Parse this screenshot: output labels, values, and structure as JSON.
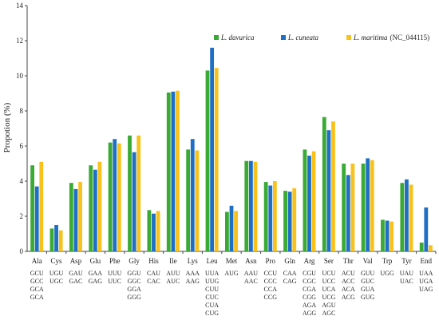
{
  "chart_data": {
    "type": "bar",
    "ylabel": "Propotion (%)",
    "xlabel": "",
    "ylim": [
      0,
      14
    ],
    "yticks": [
      0,
      2,
      4,
      6,
      8,
      10,
      12,
      14
    ],
    "grid": false,
    "legend_position": "top-right",
    "categories": [
      "Ala",
      "Cys",
      "Asp",
      "Glu",
      "Phe",
      "Gly",
      "His",
      "Ile",
      "Lys",
      "Leu",
      "Met",
      "Asn",
      "Pro",
      "Gln",
      "Arg",
      "Ser",
      "Thr",
      "Val",
      "Trp",
      "Tyr",
      "End"
    ],
    "codons": [
      [
        "GCU",
        "GCC",
        "GCA",
        "GCA"
      ],
      [
        "UGU",
        "UGC"
      ],
      [
        "GAU",
        "GAC"
      ],
      [
        "GAA",
        "GAG"
      ],
      [
        "UUU",
        "UUC"
      ],
      [
        "GGU",
        "GGC",
        "GGA",
        "GGG"
      ],
      [
        "CAU",
        "CAC"
      ],
      [
        "AUU",
        "AUC"
      ],
      [
        "AAA",
        "AAG"
      ],
      [
        "UUA",
        "UUG",
        "CUU",
        "CUC",
        "CUA",
        "CUG"
      ],
      [
        "AUG"
      ],
      [
        "AAU",
        "AAC"
      ],
      [
        "CCU",
        "CCC",
        "CCA",
        "CCG"
      ],
      [
        "CAA",
        "CAG"
      ],
      [
        "CGU",
        "CGC",
        "CGA",
        "CGG",
        "AGA",
        "AGG"
      ],
      [
        "UCU",
        "UCC",
        "UCA",
        "UCG",
        "AGU",
        "AGC"
      ],
      [
        "ACU",
        "ACC",
        "ACA",
        "ACG"
      ],
      [
        "GUU",
        "GUC",
        "GUA",
        "GUG"
      ],
      [
        "UGG"
      ],
      [
        "UAU",
        "UAC"
      ],
      [
        "UAA",
        "UGA",
        "UAG"
      ]
    ],
    "series": [
      {
        "name": "L. davurica",
        "color": "#3aaa35",
        "values": [
          4.9,
          1.3,
          3.9,
          4.9,
          6.2,
          6.6,
          2.35,
          9.05,
          5.8,
          10.3,
          2.25,
          5.15,
          3.95,
          3.45,
          5.8,
          7.65,
          5.0,
          5.0,
          1.8,
          3.9,
          0.5
        ]
      },
      {
        "name": "L. cuneata",
        "color": "#1f6fc5",
        "values": [
          3.7,
          1.5,
          3.55,
          4.65,
          6.4,
          5.65,
          2.15,
          9.1,
          6.4,
          11.6,
          2.6,
          5.15,
          3.75,
          3.4,
          5.45,
          6.9,
          4.35,
          5.3,
          1.75,
          4.1,
          2.5
        ]
      },
      {
        "name": "L. maritima",
        "suffix": "(NC_044115)",
        "color": "#f7c21c",
        "values": [
          5.1,
          1.2,
          3.95,
          5.1,
          6.15,
          6.6,
          2.3,
          9.15,
          5.75,
          10.45,
          2.3,
          5.1,
          4.0,
          3.6,
          5.7,
          7.4,
          5.0,
          5.2,
          1.7,
          3.8,
          0.35
        ]
      }
    ]
  }
}
